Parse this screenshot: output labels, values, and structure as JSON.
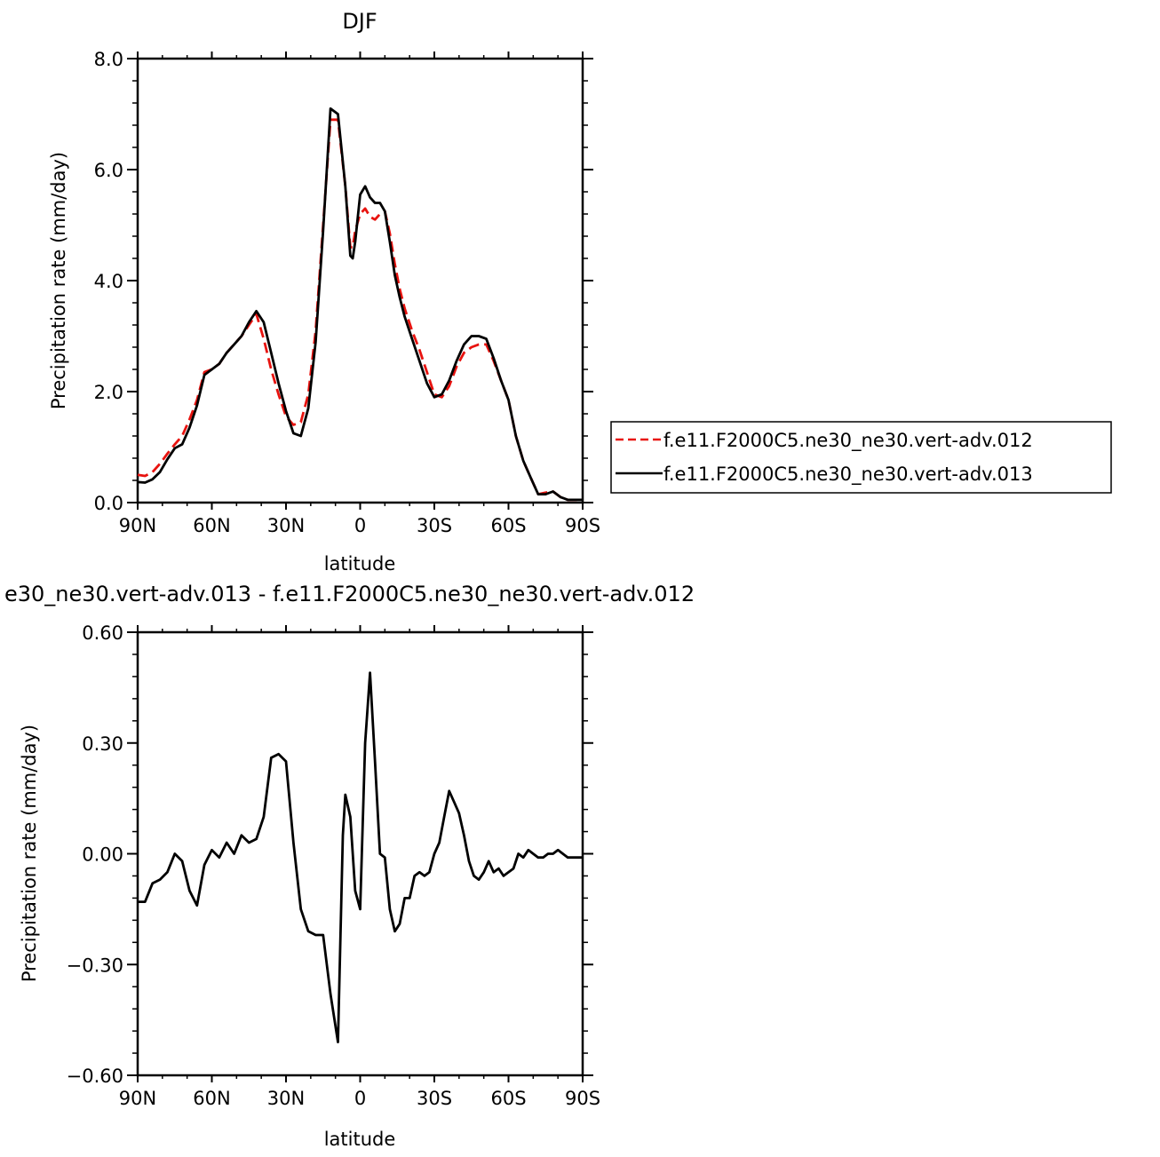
{
  "chart_data": [
    {
      "type": "line",
      "title": "DJF",
      "xlabel": "latitude",
      "ylabel": "Precipitation rate (mm/day)",
      "xlim": [
        90,
        -90
      ],
      "ylim": [
        0,
        8
      ],
      "x_ticks": [
        90,
        60,
        30,
        0,
        -30,
        -60,
        -90
      ],
      "x_tick_labels": [
        "90N",
        "60N",
        "30N",
        "0",
        "30S",
        "60S",
        "90S"
      ],
      "y_ticks": [
        0,
        2,
        4,
        6,
        8
      ],
      "y_tick_labels": [
        "0.0",
        "2.0",
        "4.0",
        "6.0",
        "8.0"
      ],
      "legend_position": "right-outside",
      "series": [
        {
          "name": "f.e11.F2000C5.ne30_ne30.vert-adv.012",
          "color": "#e8130f",
          "dash": "dashed",
          "x": [
            90,
            87,
            84,
            81,
            78,
            75,
            72,
            69,
            66,
            63,
            60,
            57,
            54,
            51,
            48,
            45,
            42,
            39,
            36,
            33,
            30,
            27,
            24,
            21,
            18,
            15,
            12,
            9,
            6,
            4,
            3,
            2,
            0,
            -2,
            -4,
            -6,
            -8,
            -10,
            -12,
            -14,
            -16,
            -18,
            -21,
            -24,
            -27,
            -30,
            -33,
            -36,
            -39,
            -42,
            -45,
            -48,
            -51,
            -54,
            -57,
            -60,
            -63,
            -66,
            -69,
            -72,
            -75,
            -78,
            -81,
            -84,
            -87,
            -90
          ],
          "y": [
            0.5,
            0.48,
            0.55,
            0.7,
            0.88,
            1.05,
            1.2,
            1.5,
            1.85,
            2.35,
            2.4,
            2.5,
            2.7,
            2.85,
            3.0,
            3.2,
            3.4,
            2.95,
            2.4,
            1.95,
            1.55,
            1.4,
            1.45,
            1.95,
            3.1,
            5.0,
            6.9,
            6.9,
            5.7,
            4.6,
            4.6,
            4.9,
            5.2,
            5.3,
            5.15,
            5.1,
            5.2,
            5.25,
            4.85,
            4.3,
            3.85,
            3.5,
            3.1,
            2.75,
            2.35,
            1.95,
            1.9,
            2.1,
            2.45,
            2.7,
            2.8,
            2.85,
            2.85,
            2.55,
            2.2,
            1.85,
            1.2,
            0.75,
            0.45,
            0.15,
            0.18,
            0.2,
            0.1,
            0.05,
            0.05,
            0.05
          ]
        },
        {
          "name": "f.e11.F2000C5.ne30_ne30.vert-adv.013",
          "color": "#000000",
          "dash": "solid",
          "x": [
            90,
            87,
            84,
            81,
            78,
            75,
            72,
            69,
            66,
            63,
            60,
            57,
            54,
            51,
            48,
            45,
            42,
            39,
            36,
            33,
            30,
            27,
            24,
            21,
            18,
            15,
            12,
            9,
            6,
            4,
            3,
            2,
            0,
            -2,
            -4,
            -6,
            -8,
            -10,
            -12,
            -14,
            -16,
            -18,
            -21,
            -24,
            -27,
            -30,
            -33,
            -36,
            -39,
            -42,
            -45,
            -48,
            -51,
            -54,
            -57,
            -60,
            -63,
            -66,
            -69,
            -72,
            -75,
            -78,
            -81,
            -84,
            -87,
            -90
          ],
          "y": [
            0.37,
            0.36,
            0.42,
            0.55,
            0.78,
            0.98,
            1.05,
            1.35,
            1.75,
            2.3,
            2.4,
            2.5,
            2.7,
            2.85,
            3.0,
            3.25,
            3.45,
            3.25,
            2.7,
            2.15,
            1.65,
            1.25,
            1.2,
            1.7,
            2.9,
            4.9,
            7.1,
            7.0,
            5.7,
            4.45,
            4.4,
            4.7,
            5.55,
            5.7,
            5.5,
            5.4,
            5.4,
            5.25,
            4.7,
            4.1,
            3.7,
            3.35,
            2.95,
            2.55,
            2.15,
            1.9,
            1.95,
            2.2,
            2.55,
            2.85,
            3.0,
            3.0,
            2.95,
            2.6,
            2.2,
            1.85,
            1.2,
            0.75,
            0.45,
            0.15,
            0.15,
            0.2,
            0.1,
            0.05,
            0.05,
            0.05
          ]
        }
      ]
    },
    {
      "type": "line",
      "title": "e30_ne30.vert-adv.013 - f.e11.F2000C5.ne30_ne30.vert-adv.012",
      "xlabel": "latitude",
      "ylabel": "Precipitation rate (mm/day)",
      "xlim": [
        90,
        -90
      ],
      "ylim": [
        -0.6,
        0.6
      ],
      "x_ticks": [
        90,
        60,
        30,
        0,
        -30,
        -60,
        -90
      ],
      "x_tick_labels": [
        "90N",
        "60N",
        "30N",
        "0",
        "30S",
        "60S",
        "90S"
      ],
      "y_ticks": [
        -0.6,
        -0.3,
        0,
        0.3,
        0.6
      ],
      "y_tick_labels": [
        "-0.60",
        "-0.30",
        "0.00",
        "0.30",
        "0.60"
      ],
      "series": [
        {
          "color": "#000000",
          "dash": "solid",
          "x": [
            90,
            87,
            84,
            81,
            78,
            75,
            72,
            69,
            66,
            63,
            60,
            57,
            54,
            51,
            48,
            45,
            42,
            39,
            36,
            33,
            30,
            27,
            24,
            21,
            18,
            15,
            12,
            9,
            7,
            6,
            4,
            2,
            0,
            -2,
            -4,
            -6,
            -8,
            -10,
            -12,
            -14,
            -16,
            -18,
            -20,
            -22,
            -24,
            -26,
            -28,
            -30,
            -32,
            -34,
            -36,
            -38,
            -40,
            -42,
            -44,
            -46,
            -48,
            -50,
            -52,
            -54,
            -56,
            -58,
            -60,
            -62,
            -64,
            -66,
            -68,
            -70,
            -72,
            -74,
            -76,
            -78,
            -80,
            -82,
            -84,
            -86,
            -88,
            -90
          ],
          "y": [
            -0.13,
            -0.13,
            -0.08,
            -0.07,
            -0.05,
            0.0,
            -0.02,
            -0.1,
            -0.14,
            -0.03,
            0.01,
            -0.01,
            0.03,
            0.0,
            0.05,
            0.03,
            0.04,
            0.1,
            0.26,
            0.27,
            0.25,
            0.03,
            -0.15,
            -0.21,
            -0.22,
            -0.22,
            -0.38,
            -0.51,
            0.05,
            0.16,
            0.1,
            -0.1,
            -0.15,
            0.3,
            0.49,
            0.25,
            0.0,
            -0.01,
            -0.15,
            -0.21,
            -0.19,
            -0.12,
            -0.12,
            -0.06,
            -0.05,
            -0.06,
            -0.05,
            0.0,
            0.03,
            0.1,
            0.17,
            0.14,
            0.11,
            0.05,
            -0.02,
            -0.06,
            -0.07,
            -0.05,
            -0.02,
            -0.05,
            -0.04,
            -0.06,
            -0.05,
            -0.04,
            0.0,
            -0.01,
            0.01,
            0.0,
            -0.01,
            -0.01,
            0.0,
            0.0,
            0.01,
            0.0,
            -0.01,
            -0.01,
            -0.01,
            -0.01
          ]
        }
      ]
    }
  ]
}
